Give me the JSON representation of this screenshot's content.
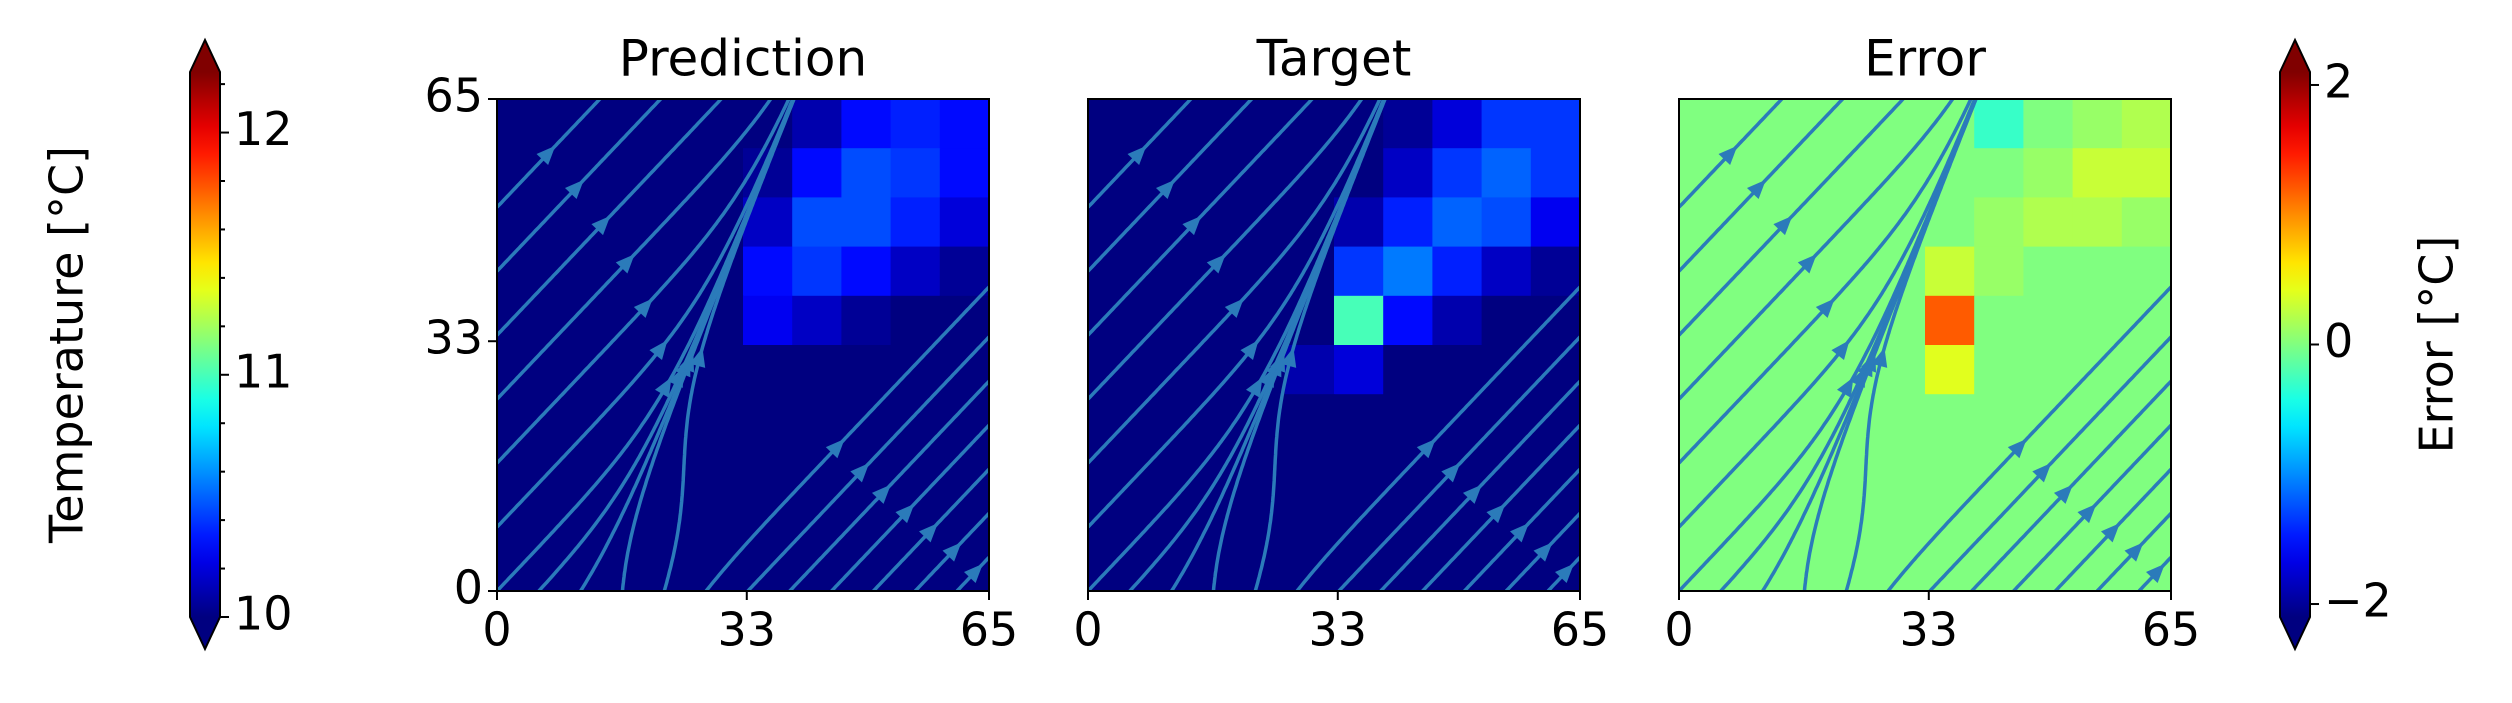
{
  "chart_data": [
    {
      "type": "colorbar",
      "label": "Temperature [°C]",
      "cmap": "jet",
      "extend": "both",
      "lim": [
        10,
        12.25
      ],
      "ticks": [
        10,
        11,
        12
      ],
      "minor_ticks": [
        10.2,
        10.4,
        10.6,
        10.8,
        11.2,
        11.4,
        11.6,
        11.8,
        12.2
      ]
    },
    {
      "type": "heatmap",
      "title": "Prediction",
      "cmap": "jet",
      "clim": [
        10,
        12.25
      ],
      "xlim": [
        0,
        65
      ],
      "ylim": [
        0,
        65
      ],
      "xticks": [
        0,
        33,
        65
      ],
      "yticks": [
        0,
        33,
        65
      ],
      "values": [
        [
          10,
          10,
          10,
          10,
          10,
          10,
          10.1,
          10.3,
          10.35,
          10.3
        ],
        [
          10,
          10,
          10,
          10,
          10,
          10.05,
          10.3,
          10.45,
          10.4,
          10.3
        ],
        [
          10,
          10,
          10,
          10,
          10,
          10.15,
          10.45,
          10.45,
          10.35,
          10.2
        ],
        [
          10,
          10,
          10,
          10,
          10,
          10.3,
          10.4,
          10.3,
          10.15,
          10.05
        ],
        [
          10,
          10,
          10,
          10,
          10,
          10.25,
          10.15,
          10.05,
          10,
          10
        ],
        [
          10,
          10,
          10,
          10,
          10,
          10,
          10,
          10,
          10,
          10
        ],
        [
          10,
          10,
          10,
          10,
          10,
          10,
          10,
          10,
          10,
          10
        ],
        [
          10,
          10,
          10,
          10,
          10,
          10,
          10,
          10,
          10,
          10
        ],
        [
          10,
          10,
          10,
          10,
          10,
          10,
          10,
          10,
          10,
          10
        ],
        [
          10,
          10,
          10,
          10,
          10,
          10,
          10,
          10,
          10,
          10
        ]
      ]
    },
    {
      "type": "heatmap",
      "title": "Target",
      "cmap": "jet",
      "clim": [
        10,
        12.25
      ],
      "xlim": [
        0,
        65
      ],
      "ylim": [
        0,
        65
      ],
      "xticks": [
        0,
        33,
        65
      ],
      "values": [
        [
          10,
          10,
          10,
          10,
          10,
          10,
          10.05,
          10.2,
          10.4,
          10.4
        ],
        [
          10,
          10,
          10,
          10,
          10,
          10,
          10.15,
          10.4,
          10.5,
          10.4
        ],
        [
          10,
          10,
          10,
          10,
          10,
          10.1,
          10.35,
          10.5,
          10.45,
          10.25
        ],
        [
          10,
          10,
          10,
          10,
          10,
          10.4,
          10.55,
          10.35,
          10.15,
          10.05
        ],
        [
          10,
          10,
          10,
          10,
          10,
          11,
          10.3,
          10.1,
          10,
          10
        ],
        [
          10,
          10,
          10,
          10,
          10.1,
          10.2,
          10,
          10,
          10,
          10
        ],
        [
          10,
          10,
          10,
          10,
          10,
          10,
          10,
          10,
          10,
          10
        ],
        [
          10,
          10,
          10,
          10,
          10,
          10,
          10,
          10,
          10,
          10
        ],
        [
          10,
          10,
          10,
          10,
          10,
          10,
          10,
          10,
          10,
          10
        ],
        [
          10,
          10,
          10,
          10,
          10,
          10,
          10,
          10,
          10,
          10
        ]
      ]
    },
    {
      "type": "heatmap",
      "title": "Error",
      "cmap": "jet",
      "clim": [
        -2.1,
        2.1
      ],
      "xlim": [
        0,
        65
      ],
      "ylim": [
        0,
        65
      ],
      "xticks": [
        0,
        33,
        65
      ],
      "values": [
        [
          0,
          0,
          0,
          0,
          0,
          0,
          -0.3,
          0,
          0.1,
          0.2
        ],
        [
          0,
          0,
          0,
          0,
          0,
          0,
          0,
          0.1,
          0.3,
          0.3
        ],
        [
          0,
          0,
          0,
          0,
          0,
          0,
          0.1,
          0.2,
          0.2,
          0.1
        ],
        [
          0,
          0,
          0,
          0,
          0,
          0.3,
          0.1,
          0,
          0,
          0
        ],
        [
          0,
          0,
          0,
          0,
          0,
          1.2,
          0,
          0,
          0,
          0
        ],
        [
          0,
          0,
          0,
          0,
          0,
          0.4,
          0,
          0,
          0,
          0
        ],
        [
          0,
          0,
          0,
          0,
          0,
          0,
          0,
          0,
          0,
          0
        ],
        [
          0,
          0,
          0,
          0,
          0,
          0,
          0,
          0,
          0,
          0
        ],
        [
          0,
          0,
          0,
          0,
          0,
          0,
          0,
          0,
          0,
          0
        ],
        [
          0,
          0,
          0,
          0,
          0,
          0,
          0,
          0,
          0,
          0
        ]
      ]
    },
    {
      "type": "colorbar",
      "label": "Error [°C]",
      "cmap": "jet",
      "extend": "both",
      "label_side": "right",
      "lim": [
        -2.1,
        2.1
      ],
      "ticks": [
        {
          "value": -2,
          "label": "−2"
        },
        0,
        2
      ]
    }
  ]
}
